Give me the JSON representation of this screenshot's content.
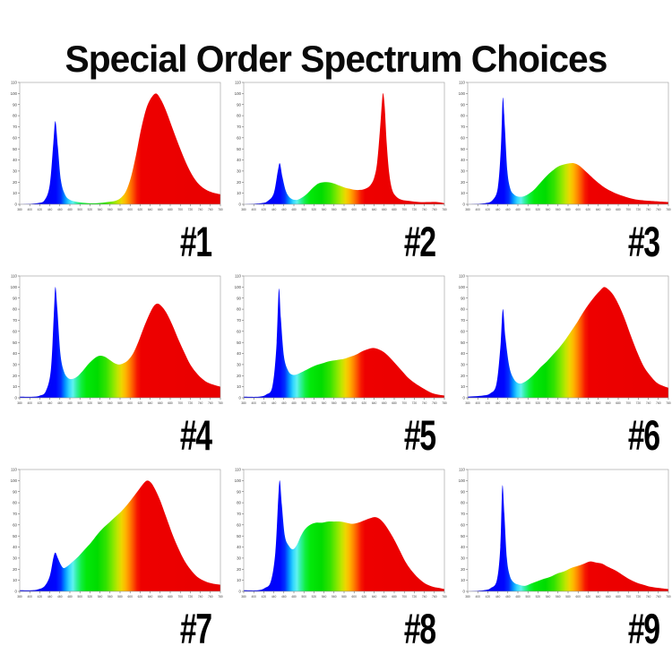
{
  "page": {
    "title": "Special Order Spectrum Choices",
    "background": "#ffffff"
  },
  "axes": {
    "x_label_unit": "nm",
    "x_range": [
      380,
      780
    ],
    "y_range": [
      0,
      110
    ],
    "x_ticks": [
      380,
      400,
      420,
      440,
      460,
      480,
      500,
      520,
      540,
      560,
      580,
      600,
      620,
      640,
      660,
      680,
      700,
      720,
      740,
      760,
      780
    ],
    "y_ticks": [
      0,
      10,
      20,
      30,
      40,
      50,
      60,
      70,
      80,
      90,
      100,
      110
    ],
    "grid": false,
    "border_color": "#9a9a9a",
    "tick_color": "#555555",
    "label_color": "#444444"
  },
  "colors": {
    "wavelength_gradient_stops": [
      [
        380,
        "#0000e6"
      ],
      [
        452,
        "#0005ff"
      ],
      [
        462,
        "#0030ff"
      ],
      [
        470,
        "#0090ff"
      ],
      [
        478,
        "#2fd4ff"
      ],
      [
        486,
        "#5ff2ef"
      ],
      [
        494,
        "#2ef09a"
      ],
      [
        503,
        "#0fee3e"
      ],
      [
        513,
        "#02e80a"
      ],
      [
        535,
        "#00dc00"
      ],
      [
        552,
        "#33e300"
      ],
      [
        565,
        "#7fe800"
      ],
      [
        575,
        "#c0e600"
      ],
      [
        583,
        "#eed600"
      ],
      [
        591,
        "#ffb400"
      ],
      [
        599,
        "#ff8400"
      ],
      [
        607,
        "#fc4c00"
      ],
      [
        614,
        "#f61800"
      ],
      [
        622,
        "#ee0000"
      ],
      [
        780,
        "#e80000"
      ]
    ]
  },
  "chart_data": [
    {
      "type": "area",
      "label": "#1",
      "description": "blue peak 450nm ~75, deep valley, large red peak ~650nm ~100",
      "points": [
        [
          380,
          0
        ],
        [
          415,
          1
        ],
        [
          430,
          4
        ],
        [
          440,
          18
        ],
        [
          447,
          55
        ],
        [
          451,
          75
        ],
        [
          456,
          52
        ],
        [
          462,
          22
        ],
        [
          470,
          9
        ],
        [
          480,
          4
        ],
        [
          495,
          2
        ],
        [
          515,
          1
        ],
        [
          535,
          1
        ],
        [
          555,
          2
        ],
        [
          570,
          3
        ],
        [
          582,
          6
        ],
        [
          592,
          12
        ],
        [
          602,
          25
        ],
        [
          612,
          45
        ],
        [
          622,
          68
        ],
        [
          632,
          86
        ],
        [
          642,
          96
        ],
        [
          652,
          100
        ],
        [
          662,
          94
        ],
        [
          672,
          84
        ],
        [
          685,
          68
        ],
        [
          700,
          50
        ],
        [
          715,
          34
        ],
        [
          730,
          22
        ],
        [
          745,
          15
        ],
        [
          762,
          11
        ],
        [
          780,
          9
        ]
      ]
    },
    {
      "type": "area",
      "label": "#2",
      "description": "blue peak 450nm ~37, broad green hump ~20, narrow red spike 658nm ~100",
      "points": [
        [
          380,
          0
        ],
        [
          415,
          1
        ],
        [
          428,
          3
        ],
        [
          440,
          10
        ],
        [
          448,
          30
        ],
        [
          452,
          37
        ],
        [
          457,
          25
        ],
        [
          464,
          12
        ],
        [
          472,
          6
        ],
        [
          482,
          4
        ],
        [
          492,
          5
        ],
        [
          505,
          9
        ],
        [
          518,
          15
        ],
        [
          530,
          19
        ],
        [
          545,
          20
        ],
        [
          558,
          19
        ],
        [
          570,
          17
        ],
        [
          582,
          15
        ],
        [
          592,
          14
        ],
        [
          602,
          13
        ],
        [
          612,
          13
        ],
        [
          622,
          14
        ],
        [
          632,
          17
        ],
        [
          640,
          24
        ],
        [
          646,
          38
        ],
        [
          652,
          70
        ],
        [
          656,
          95
        ],
        [
          658,
          100
        ],
        [
          661,
          88
        ],
        [
          665,
          55
        ],
        [
          670,
          28
        ],
        [
          676,
          13
        ],
        [
          684,
          7
        ],
        [
          695,
          4
        ],
        [
          710,
          3
        ],
        [
          730,
          2
        ],
        [
          750,
          2
        ],
        [
          765,
          2
        ],
        [
          780,
          1
        ]
      ]
    },
    {
      "type": "area",
      "label": "#3",
      "description": "sharp blue peak 450nm ~96, broad phosphor hump ~590nm ~37 (cool white)",
      "points": [
        [
          380,
          0
        ],
        [
          415,
          1
        ],
        [
          430,
          4
        ],
        [
          440,
          15
        ],
        [
          446,
          50
        ],
        [
          450,
          96
        ],
        [
          454,
          70
        ],
        [
          459,
          30
        ],
        [
          465,
          14
        ],
        [
          472,
          9
        ],
        [
          480,
          7
        ],
        [
          490,
          7
        ],
        [
          500,
          9
        ],
        [
          512,
          13
        ],
        [
          524,
          19
        ],
        [
          536,
          25
        ],
        [
          548,
          30
        ],
        [
          560,
          34
        ],
        [
          572,
          36
        ],
        [
          583,
          37
        ],
        [
          592,
          37
        ],
        [
          602,
          35
        ],
        [
          612,
          31
        ],
        [
          624,
          26
        ],
        [
          636,
          21
        ],
        [
          650,
          16
        ],
        [
          665,
          12
        ],
        [
          680,
          9
        ],
        [
          700,
          6
        ],
        [
          720,
          4
        ],
        [
          745,
          3
        ],
        [
          780,
          2
        ]
      ]
    },
    {
      "type": "area",
      "label": "#4",
      "description": "blue peak 450nm ~100, green hump 540nm ~38, broad red peak 650nm ~85",
      "points": [
        [
          380,
          1
        ],
        [
          408,
          1
        ],
        [
          420,
          2
        ],
        [
          432,
          6
        ],
        [
          442,
          25
        ],
        [
          448,
          75
        ],
        [
          451,
          100
        ],
        [
          455,
          80
        ],
        [
          461,
          40
        ],
        [
          468,
          24
        ],
        [
          476,
          18
        ],
        [
          484,
          17
        ],
        [
          494,
          19
        ],
        [
          505,
          24
        ],
        [
          518,
          31
        ],
        [
          530,
          36
        ],
        [
          540,
          38
        ],
        [
          550,
          37
        ],
        [
          560,
          34
        ],
        [
          570,
          31
        ],
        [
          578,
          30
        ],
        [
          586,
          31
        ],
        [
          596,
          34
        ],
        [
          606,
          40
        ],
        [
          616,
          50
        ],
        [
          626,
          62
        ],
        [
          636,
          73
        ],
        [
          646,
          82
        ],
        [
          654,
          85
        ],
        [
          662,
          83
        ],
        [
          672,
          77
        ],
        [
          684,
          66
        ],
        [
          696,
          53
        ],
        [
          708,
          41
        ],
        [
          720,
          30
        ],
        [
          735,
          21
        ],
        [
          750,
          15
        ],
        [
          765,
          12
        ],
        [
          780,
          10
        ]
      ]
    },
    {
      "type": "area",
      "label": "#5",
      "description": "sharp blue peak 450nm ~98, gentle broad shoulder rising to red hump 635nm ~45",
      "points": [
        [
          380,
          1
        ],
        [
          410,
          1
        ],
        [
          425,
          3
        ],
        [
          437,
          10
        ],
        [
          445,
          45
        ],
        [
          450,
          98
        ],
        [
          454,
          72
        ],
        [
          460,
          38
        ],
        [
          468,
          25
        ],
        [
          476,
          21
        ],
        [
          485,
          21
        ],
        [
          495,
          23
        ],
        [
          508,
          26
        ],
        [
          522,
          29
        ],
        [
          536,
          31
        ],
        [
          550,
          33
        ],
        [
          564,
          34
        ],
        [
          578,
          35
        ],
        [
          592,
          37
        ],
        [
          604,
          39
        ],
        [
          616,
          42
        ],
        [
          628,
          44
        ],
        [
          638,
          45
        ],
        [
          648,
          44
        ],
        [
          660,
          41
        ],
        [
          672,
          36
        ],
        [
          684,
          30
        ],
        [
          696,
          24
        ],
        [
          708,
          18
        ],
        [
          722,
          13
        ],
        [
          736,
          9
        ],
        [
          752,
          5
        ],
        [
          766,
          3
        ],
        [
          780,
          2
        ]
      ]
    },
    {
      "type": "area",
      "label": "#6",
      "description": "blue peak 450nm ~80, long rising slope to big broad red peak 652nm ~100",
      "points": [
        [
          380,
          1
        ],
        [
          410,
          2
        ],
        [
          425,
          4
        ],
        [
          437,
          12
        ],
        [
          445,
          45
        ],
        [
          450,
          80
        ],
        [
          455,
          55
        ],
        [
          463,
          28
        ],
        [
          472,
          17
        ],
        [
          482,
          13
        ],
        [
          492,
          14
        ],
        [
          502,
          17
        ],
        [
          514,
          22
        ],
        [
          526,
          28
        ],
        [
          538,
          33
        ],
        [
          550,
          39
        ],
        [
          562,
          45
        ],
        [
          574,
          52
        ],
        [
          586,
          60
        ],
        [
          598,
          68
        ],
        [
          610,
          77
        ],
        [
          622,
          85
        ],
        [
          634,
          92
        ],
        [
          644,
          97
        ],
        [
          652,
          100
        ],
        [
          660,
          98
        ],
        [
          670,
          93
        ],
        [
          682,
          83
        ],
        [
          694,
          70
        ],
        [
          706,
          55
        ],
        [
          718,
          41
        ],
        [
          730,
          29
        ],
        [
          742,
          21
        ],
        [
          756,
          14
        ],
        [
          768,
          11
        ],
        [
          780,
          9
        ]
      ]
    },
    {
      "type": "area",
      "label": "#7",
      "description": "small blue bump 450nm ~35, continuous ramp up to red peak 634nm ~100",
      "points": [
        [
          380,
          1
        ],
        [
          405,
          1
        ],
        [
          418,
          2
        ],
        [
          430,
          5
        ],
        [
          440,
          14
        ],
        [
          447,
          30
        ],
        [
          451,
          35
        ],
        [
          456,
          30
        ],
        [
          462,
          24
        ],
        [
          468,
          21
        ],
        [
          476,
          23
        ],
        [
          486,
          27
        ],
        [
          498,
          32
        ],
        [
          510,
          38
        ],
        [
          522,
          44
        ],
        [
          534,
          51
        ],
        [
          546,
          57
        ],
        [
          558,
          62
        ],
        [
          570,
          67
        ],
        [
          582,
          72
        ],
        [
          594,
          78
        ],
        [
          606,
          85
        ],
        [
          616,
          91
        ],
        [
          626,
          97
        ],
        [
          634,
          100
        ],
        [
          642,
          98
        ],
        [
          650,
          92
        ],
        [
          660,
          82
        ],
        [
          672,
          67
        ],
        [
          684,
          52
        ],
        [
          696,
          39
        ],
        [
          708,
          28
        ],
        [
          720,
          20
        ],
        [
          734,
          13
        ],
        [
          750,
          9
        ],
        [
          765,
          7
        ],
        [
          780,
          6
        ]
      ]
    },
    {
      "type": "area",
      "label": "#8",
      "description": "blue peak 450nm ~100, wide flat full-spectrum plateau ~60-67 from 510 to 660",
      "points": [
        [
          380,
          1
        ],
        [
          408,
          1
        ],
        [
          422,
          3
        ],
        [
          434,
          9
        ],
        [
          443,
          35
        ],
        [
          449,
          85
        ],
        [
          452,
          100
        ],
        [
          456,
          78
        ],
        [
          462,
          50
        ],
        [
          470,
          41
        ],
        [
          478,
          38
        ],
        [
          486,
          42
        ],
        [
          494,
          50
        ],
        [
          502,
          56
        ],
        [
          512,
          60
        ],
        [
          524,
          62
        ],
        [
          536,
          62
        ],
        [
          548,
          63
        ],
        [
          560,
          63
        ],
        [
          572,
          63
        ],
        [
          584,
          62
        ],
        [
          596,
          61
        ],
        [
          608,
          62
        ],
        [
          620,
          64
        ],
        [
          632,
          66
        ],
        [
          642,
          67
        ],
        [
          652,
          65
        ],
        [
          662,
          60
        ],
        [
          672,
          53
        ],
        [
          682,
          45
        ],
        [
          692,
          36
        ],
        [
          702,
          27
        ],
        [
          714,
          19
        ],
        [
          728,
          12
        ],
        [
          742,
          7
        ],
        [
          758,
          4
        ],
        [
          770,
          3
        ],
        [
          780,
          2
        ]
      ]
    },
    {
      "type": "area",
      "label": "#9",
      "description": "tall narrow blue peak 450nm ~95, low broad red hump 625nm ~27",
      "points": [
        [
          380,
          0
        ],
        [
          412,
          1
        ],
        [
          426,
          3
        ],
        [
          438,
          10
        ],
        [
          445,
          40
        ],
        [
          449,
          95
        ],
        [
          453,
          70
        ],
        [
          458,
          30
        ],
        [
          464,
          14
        ],
        [
          472,
          8
        ],
        [
          482,
          6
        ],
        [
          494,
          5
        ],
        [
          506,
          7
        ],
        [
          518,
          9
        ],
        [
          530,
          11
        ],
        [
          544,
          13
        ],
        [
          558,
          16
        ],
        [
          572,
          18
        ],
        [
          586,
          21
        ],
        [
          600,
          23
        ],
        [
          612,
          25
        ],
        [
          624,
          27
        ],
        [
          636,
          26
        ],
        [
          648,
          25
        ],
        [
          660,
          22
        ],
        [
          674,
          19
        ],
        [
          688,
          15
        ],
        [
          702,
          11
        ],
        [
          716,
          8
        ],
        [
          730,
          6
        ],
        [
          746,
          4
        ],
        [
          762,
          3
        ],
        [
          780,
          2
        ]
      ]
    }
  ]
}
